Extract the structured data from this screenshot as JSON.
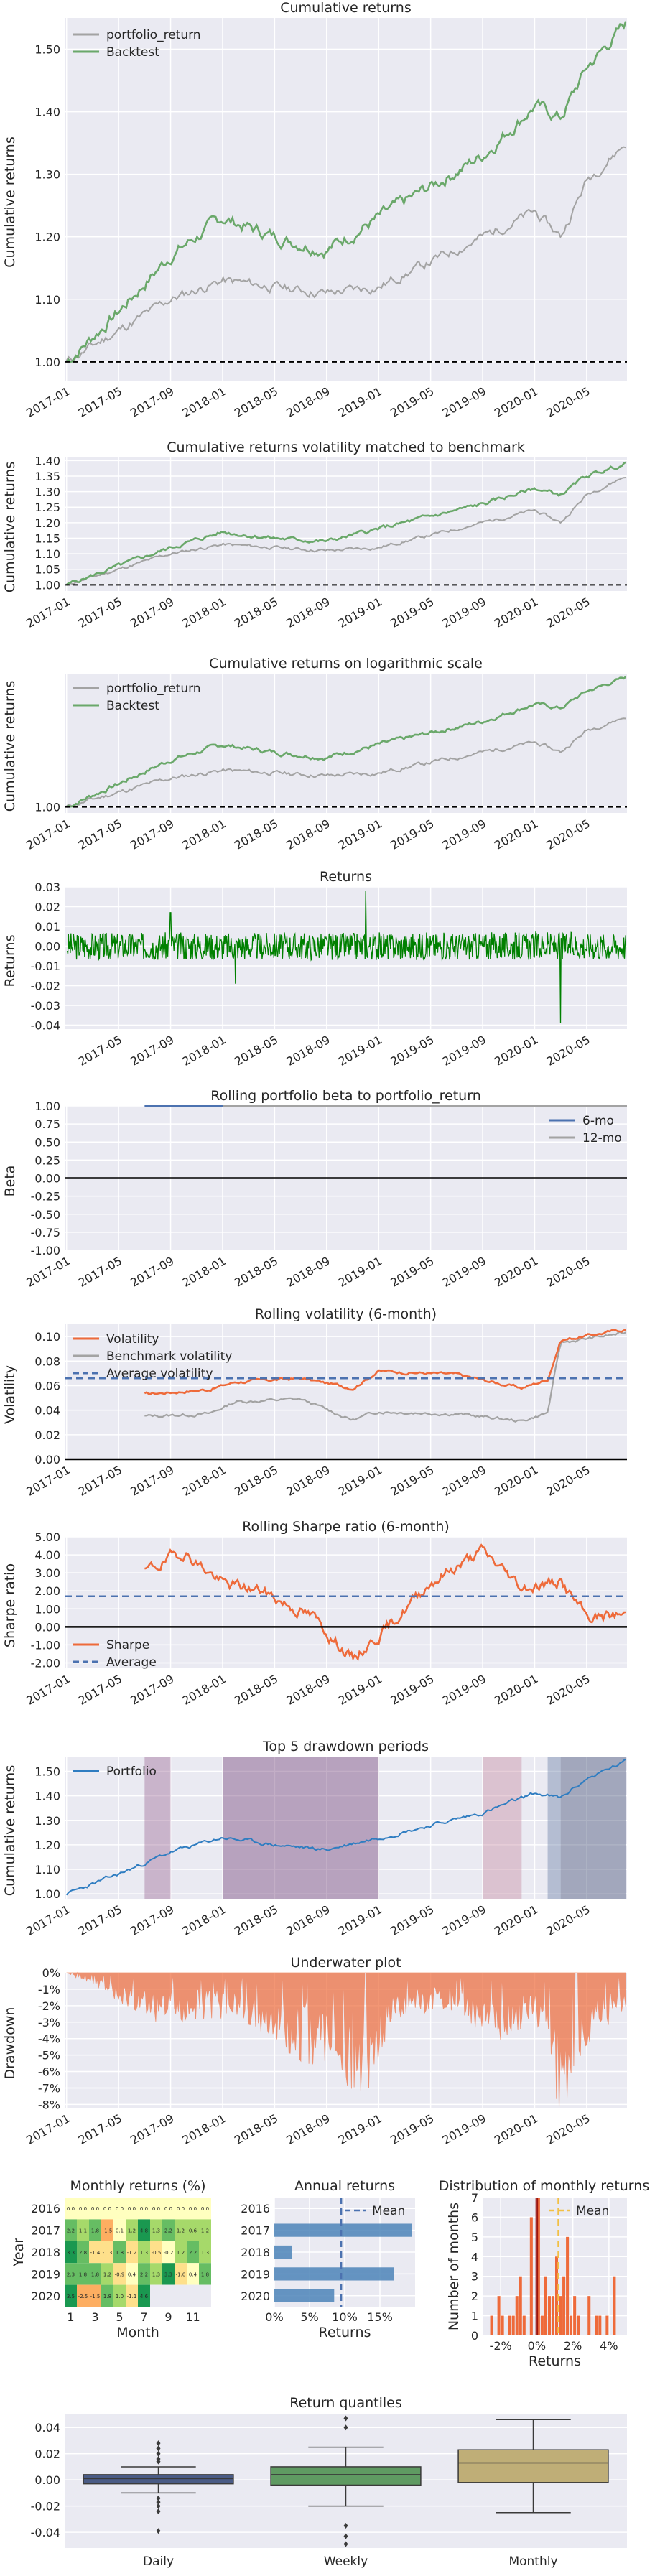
{
  "colors": {
    "bg": "#eaeaf2",
    "portfolio": "#2f7dc1",
    "benchmark": "#a3a3a3",
    "backtest": "#6aa86a",
    "returns": "#008000",
    "orange": "#ee6a3a",
    "avg": "#4c72b0",
    "beta6": "#4c72b0"
  },
  "chart_data": [
    {
      "type": "line",
      "title": "Cumulative returns",
      "ylabel": "Cumulative returns",
      "x_ticks": [
        "2017-01",
        "2017-05",
        "2017-09",
        "2018-01",
        "2018-05",
        "2018-09",
        "2019-01",
        "2019-05",
        "2019-09",
        "2020-01",
        "2020-05"
      ],
      "y_ticks": [
        "1.00",
        "1.10",
        "1.20",
        "1.30",
        "1.40",
        "1.50"
      ],
      "ylim": [
        0.97,
        1.55
      ],
      "legend": [
        "portfolio_return",
        "Backtest"
      ],
      "legend_position": "top-left",
      "series": [
        {
          "name": "portfolio_return",
          "x": [
            "2017-01",
            "2017-05",
            "2017-09",
            "2018-01",
            "2018-05",
            "2018-09",
            "2019-01",
            "2019-05",
            "2019-09",
            "2020-01",
            "2020-03",
            "2020-05",
            "2020-08"
          ],
          "values": [
            1.0,
            1.05,
            1.1,
            1.13,
            1.12,
            1.11,
            1.12,
            1.16,
            1.2,
            1.24,
            1.2,
            1.29,
            1.35
          ]
        },
        {
          "name": "Backtest",
          "x": [
            "2017-01",
            "2017-05",
            "2017-09",
            "2018-01",
            "2018-05",
            "2018-09",
            "2019-01",
            "2019-05",
            "2019-09",
            "2020-01",
            "2020-03",
            "2020-05",
            "2020-08"
          ],
          "values": [
            1.0,
            1.08,
            1.17,
            1.23,
            1.2,
            1.18,
            1.23,
            1.28,
            1.33,
            1.41,
            1.39,
            1.47,
            1.54
          ]
        }
      ],
      "baseline": 1.0
    },
    {
      "type": "line",
      "title": "Cumulative returns volatility matched to benchmark",
      "ylabel": "Cumulative returns",
      "x_ticks": [
        "2017-01",
        "2017-05",
        "2017-09",
        "2018-01",
        "2018-05",
        "2018-09",
        "2019-01",
        "2019-05",
        "2019-09",
        "2020-01",
        "2020-05"
      ],
      "y_ticks": [
        "1.00",
        "1.05",
        "1.10",
        "1.15",
        "1.20",
        "1.25",
        "1.30",
        "1.35",
        "1.40"
      ],
      "ylim": [
        0.98,
        1.41
      ],
      "series": [
        {
          "name": "portfolio_return",
          "x": [
            "2017-01",
            "2017-05",
            "2017-09",
            "2018-01",
            "2018-05",
            "2018-09",
            "2019-01",
            "2019-05",
            "2019-09",
            "2020-01",
            "2020-03",
            "2020-05",
            "2020-08"
          ],
          "values": [
            1.0,
            1.05,
            1.1,
            1.13,
            1.12,
            1.11,
            1.12,
            1.16,
            1.2,
            1.24,
            1.2,
            1.29,
            1.35
          ]
        },
        {
          "name": "Backtest",
          "x": [
            "2017-01",
            "2017-05",
            "2017-09",
            "2018-01",
            "2018-05",
            "2018-09",
            "2019-01",
            "2019-05",
            "2019-09",
            "2020-01",
            "2020-03",
            "2020-05",
            "2020-08"
          ],
          "values": [
            1.0,
            1.06,
            1.12,
            1.17,
            1.15,
            1.14,
            1.18,
            1.22,
            1.26,
            1.31,
            1.29,
            1.35,
            1.39
          ]
        }
      ],
      "baseline": 1.0
    },
    {
      "type": "line",
      "title": "Cumulative returns on logarithmic scale",
      "ylabel": "Cumulative returns",
      "x_ticks": [
        "2017-01",
        "2017-05",
        "2017-09",
        "2018-01",
        "2018-05",
        "2018-09",
        "2019-01",
        "2019-05",
        "2019-09",
        "2020-01",
        "2020-05"
      ],
      "y_ticks": [
        "1.00"
      ],
      "log_scale": true,
      "ylim": [
        0.98,
        1.56
      ],
      "legend": [
        "portfolio_return",
        "Backtest"
      ],
      "legend_position": "top-left",
      "series": [
        {
          "name": "portfolio_return",
          "x": [
            "2017-01",
            "2017-05",
            "2017-09",
            "2018-01",
            "2018-05",
            "2018-09",
            "2019-01",
            "2019-05",
            "2019-09",
            "2020-01",
            "2020-03",
            "2020-05",
            "2020-08"
          ],
          "values": [
            1.0,
            1.05,
            1.1,
            1.13,
            1.12,
            1.11,
            1.12,
            1.16,
            1.2,
            1.24,
            1.2,
            1.29,
            1.35
          ]
        },
        {
          "name": "Backtest",
          "x": [
            "2017-01",
            "2017-05",
            "2017-09",
            "2018-01",
            "2018-05",
            "2018-09",
            "2019-01",
            "2019-05",
            "2019-09",
            "2020-01",
            "2020-03",
            "2020-05",
            "2020-08"
          ],
          "values": [
            1.0,
            1.08,
            1.17,
            1.23,
            1.2,
            1.18,
            1.23,
            1.28,
            1.33,
            1.41,
            1.39,
            1.47,
            1.54
          ]
        }
      ],
      "baseline": 1.0
    },
    {
      "type": "line",
      "title": "Returns",
      "ylabel": "Returns",
      "x_ticks": [
        "2017-05",
        "2017-09",
        "2018-01",
        "2018-05",
        "2018-09",
        "2019-01",
        "2019-05",
        "2019-09",
        "2020-01",
        "2020-05"
      ],
      "y_ticks": [
        "0.03",
        "0.02",
        "0.01",
        "0.00",
        "-0.01",
        "-0.02",
        "-0.03",
        "-0.04"
      ],
      "ylim": [
        -0.042,
        0.03
      ],
      "series": [
        {
          "name": "",
          "x": [
            "2017-01",
            "2017-09",
            "2018-02",
            "2018-12",
            "2020-03",
            "2020-08"
          ],
          "values": [
            0.0,
            0.017,
            -0.019,
            0.028,
            -0.039,
            0.0
          ]
        }
      ]
    },
    {
      "type": "line",
      "title": "Rolling portfolio beta to portfolio_return",
      "ylabel": "Beta",
      "x_ticks": [
        "2017-01",
        "2017-05",
        "2017-09",
        "2018-01",
        "2018-05",
        "2018-09",
        "2019-01",
        "2019-05",
        "2019-09",
        "2020-01",
        "2020-05"
      ],
      "y_ticks": [
        "1.00",
        "0.75",
        "0.50",
        "0.25",
        "0.00",
        "-0.25",
        "-0.50",
        "-0.75",
        "-1.00"
      ],
      "ylim": [
        -1.0,
        1.0
      ],
      "legend": [
        "6-mo",
        "12-mo"
      ],
      "legend_position": "top-right",
      "series": [
        {
          "name": "6-mo",
          "x": [
            "2017-07",
            "2020-08"
          ],
          "values": [
            1.0,
            1.0
          ]
        },
        {
          "name": "12-mo",
          "x": [
            "2018-01",
            "2020-08"
          ],
          "values": [
            1.0,
            1.0
          ]
        }
      ],
      "baseline": 0.0
    },
    {
      "type": "line",
      "title": "Rolling volatility (6-month)",
      "ylabel": "Volatility",
      "x_ticks": [
        "2017-01",
        "2017-05",
        "2017-09",
        "2018-01",
        "2018-05",
        "2018-09",
        "2019-01",
        "2019-05",
        "2019-09",
        "2020-01",
        "2020-05"
      ],
      "y_ticks": [
        "0.10",
        "0.08",
        "0.06",
        "0.04",
        "0.02",
        "0.00"
      ],
      "ylim": [
        0.0,
        0.11
      ],
      "legend": [
        "Volatility",
        "Benchmark volatility",
        "Average volatility"
      ],
      "legend_position": "top-left",
      "series": [
        {
          "name": "Volatility",
          "x": [
            "2017-07",
            "2017-12",
            "2018-02",
            "2018-07",
            "2018-11",
            "2019-01",
            "2019-07",
            "2019-12",
            "2020-02",
            "2020-03",
            "2020-08"
          ],
          "values": [
            0.053,
            0.057,
            0.063,
            0.066,
            0.058,
            0.072,
            0.069,
            0.058,
            0.065,
            0.097,
            0.106
          ]
        },
        {
          "name": "Benchmark volatility",
          "x": [
            "2017-07",
            "2017-12",
            "2018-02",
            "2018-07",
            "2018-11",
            "2019-01",
            "2019-07",
            "2019-12",
            "2020-02",
            "2020-03",
            "2020-08"
          ],
          "values": [
            0.035,
            0.037,
            0.047,
            0.049,
            0.032,
            0.039,
            0.037,
            0.031,
            0.038,
            0.095,
            0.103
          ]
        }
      ],
      "average": 0.066,
      "baseline": 0.0
    },
    {
      "type": "line",
      "title": "Rolling Sharpe ratio (6-month)",
      "ylabel": "Sharpe ratio",
      "x_ticks": [
        "2017-01",
        "2017-05",
        "2017-09",
        "2018-01",
        "2018-05",
        "2018-09",
        "2019-01",
        "2019-05",
        "2019-09",
        "2020-01",
        "2020-05"
      ],
      "y_ticks": [
        "5.00",
        "4.00",
        "3.00",
        "2.00",
        "1.00",
        "0.00",
        "-1.00",
        "-2.00"
      ],
      "ylim": [
        -2.3,
        5.0
      ],
      "legend": [
        "Sharpe",
        "Average"
      ],
      "legend_position": "bottom-left",
      "series": [
        {
          "name": "Sharpe",
          "x": [
            "2017-07",
            "2017-10",
            "2018-01",
            "2018-04",
            "2018-08",
            "2018-11",
            "2019-02",
            "2019-05",
            "2019-09",
            "2019-12",
            "2020-03",
            "2020-05",
            "2020-08"
          ],
          "values": [
            3.0,
            4.2,
            2.4,
            2.0,
            0.5,
            -1.8,
            0.2,
            2.5,
            4.2,
            2.2,
            2.5,
            0.5,
            0.7
          ]
        }
      ],
      "average": 1.7,
      "baseline": 0.0
    },
    {
      "type": "line",
      "title": "Top 5 drawdown periods",
      "ylabel": "Cumulative returns",
      "x_ticks": [
        "2017-01",
        "2017-05",
        "2017-09",
        "2018-01",
        "2018-05",
        "2018-09",
        "2019-01",
        "2019-05",
        "2019-09",
        "2020-01",
        "2020-05"
      ],
      "y_ticks": [
        "1.00",
        "1.10",
        "1.20",
        "1.30",
        "1.40",
        "1.50"
      ],
      "ylim": [
        0.98,
        1.56
      ],
      "legend": [
        "Portfolio"
      ],
      "legend_position": "top-left",
      "series": [
        {
          "name": "Portfolio",
          "x": [
            "2017-01",
            "2017-05",
            "2017-09",
            "2018-01",
            "2018-05",
            "2018-09",
            "2019-01",
            "2019-05",
            "2019-09",
            "2020-01",
            "2020-03",
            "2020-05",
            "2020-08"
          ],
          "values": [
            1.0,
            1.08,
            1.17,
            1.23,
            1.2,
            1.18,
            1.23,
            1.28,
            1.33,
            1.41,
            1.39,
            1.47,
            1.54
          ]
        }
      ],
      "drawdown_periods": [
        {
          "start": "2017-07",
          "end": "2017-09"
        },
        {
          "start": "2018-01",
          "end": "2019-01"
        },
        {
          "start": "2019-09",
          "end": "2019-12"
        },
        {
          "start": "2020-02",
          "end": "2020-03"
        },
        {
          "start": "2020-03",
          "end": "2020-08"
        }
      ]
    },
    {
      "type": "area",
      "title": "Underwater plot",
      "ylabel": "Drawdown",
      "x_ticks": [
        "2017-01",
        "2017-05",
        "2017-09",
        "2018-01",
        "2018-05",
        "2018-09",
        "2019-01",
        "2019-05",
        "2019-09",
        "2020-01",
        "2020-05"
      ],
      "y_ticks": [
        "0%",
        "-1%",
        "-2%",
        "-3%",
        "-4%",
        "-5%",
        "-6%",
        "-7%",
        "-8%"
      ],
      "ylim": [
        -8.2,
        0
      ],
      "series": [
        {
          "name": "",
          "x": [
            "2017-01",
            "2017-08",
            "2018-02",
            "2018-06",
            "2018-10",
            "2018-12",
            "2019-02",
            "2019-06",
            "2019-10",
            "2020-01",
            "2020-03",
            "2020-05",
            "2020-08"
          ],
          "values": [
            0,
            -2.8,
            -2.5,
            -4.5,
            -6.0,
            -7.1,
            -3.0,
            -2.0,
            -4.0,
            -2.8,
            -8.0,
            -4.0,
            -2.0
          ]
        }
      ]
    },
    {
      "type": "heatmap",
      "title": "Monthly returns (%)",
      "xlabel": "Month",
      "ylabel": "Year",
      "x_ticks": [
        "1",
        "3",
        "5",
        "7",
        "9",
        "11"
      ],
      "y_ticks": [
        "2016",
        "2017",
        "2018",
        "2019",
        "2020"
      ],
      "cells": [
        [
          "0.0",
          "0.0",
          "0.0",
          "0.0",
          "0.0",
          "0.0",
          "0.0",
          "0.0",
          "0.0",
          "0.0",
          "0.0",
          "0.0"
        ],
        [
          "2.2",
          "1.1",
          "1.8",
          "-1.5",
          "0.1",
          "1.2",
          "4.8",
          "1.3",
          "2.2",
          "1.2",
          "0.6",
          "1.2"
        ],
        [
          "3.3",
          "2.8",
          "-1.4",
          "-1.3",
          "1.8",
          "-1.2",
          "1.3",
          "-0.5",
          "-0.2",
          "1.2",
          "2.2",
          "1.3"
        ],
        [
          "2.3",
          "1.8",
          "1.8",
          "1.2",
          "-0.9",
          "0.4",
          "2.2",
          "1.3",
          "3.3",
          "-1.0",
          "0.4",
          "1.8"
        ],
        [
          "3.5",
          "-2.5",
          "-1.5",
          "1.8",
          "1.0",
          "-1.1",
          "4.6",
          "",
          "",
          "",
          "",
          ""
        ]
      ]
    },
    {
      "type": "bar",
      "title": "Annual returns",
      "xlabel": "Returns",
      "categories": [
        "2016",
        "2017",
        "2018",
        "2019",
        "2020"
      ],
      "values": [
        0.0,
        19.5,
        2.5,
        17.0,
        8.5
      ],
      "x_ticks": [
        "0%",
        "5%",
        "10%",
        "15%"
      ],
      "xlim": [
        0,
        20
      ],
      "mean": 9.5,
      "legend": [
        "Mean"
      ]
    },
    {
      "type": "bar",
      "title": "Distribution of monthly returns",
      "xlabel": "Returns",
      "ylabel": "Number of months",
      "x_ticks": [
        "-2%",
        "0%",
        "2%",
        "4%"
      ],
      "y_ticks": [
        "0",
        "1",
        "2",
        "3",
        "4",
        "5",
        "6",
        "7"
      ],
      "ylim": [
        0,
        7
      ],
      "xlim": [
        -3,
        5
      ],
      "bins": [
        -2.6,
        -2.4,
        -2.2,
        -2.0,
        -1.8,
        -1.6,
        -1.4,
        -1.2,
        -1.0,
        -0.8,
        -0.6,
        -0.4,
        -0.2,
        0.0,
        0.2,
        0.4,
        0.6,
        0.8,
        1.0,
        1.2,
        1.4,
        1.6,
        1.8,
        2.0,
        2.2,
        2.4,
        2.6,
        2.8,
        3.0,
        3.2,
        3.4,
        3.6,
        3.8,
        4.0,
        4.2,
        4.4
      ],
      "values": [
        1,
        0,
        2,
        1,
        0,
        1,
        1,
        2,
        3,
        1,
        0,
        6,
        0,
        7,
        1,
        3,
        2,
        2,
        4,
        2,
        3,
        5,
        1,
        2,
        1,
        0,
        0,
        2,
        0,
        1,
        1,
        0,
        1,
        0,
        3,
        0
      ],
      "mean": 1.2,
      "zero_line": 0,
      "legend": [
        "Mean"
      ]
    },
    {
      "type": "box",
      "title": "Return quantiles",
      "categories": [
        "Daily",
        "Weekly",
        "Monthly"
      ],
      "y_ticks": [
        "0.04",
        "0.02",
        "0.00",
        "-0.02",
        "-0.04"
      ],
      "ylim": [
        -0.052,
        0.05
      ],
      "boxes": [
        {
          "name": "Daily",
          "q1": -0.003,
          "median": 0.001,
          "q3": 0.004,
          "low": -0.01,
          "high": 0.01,
          "outliers": [
            0.028,
            0.024,
            0.02,
            0.016,
            0.014,
            -0.014,
            -0.017,
            -0.02,
            -0.024,
            -0.039
          ]
        },
        {
          "name": "Weekly",
          "q1": -0.004,
          "median": 0.004,
          "q3": 0.01,
          "low": -0.02,
          "high": 0.025,
          "outliers": [
            0.047,
            0.04,
            -0.035,
            -0.043,
            -0.049
          ]
        },
        {
          "name": "Monthly",
          "q1": -0.002,
          "median": 0.013,
          "q3": 0.023,
          "low": -0.025,
          "high": 0.046,
          "outliers": []
        }
      ]
    }
  ]
}
